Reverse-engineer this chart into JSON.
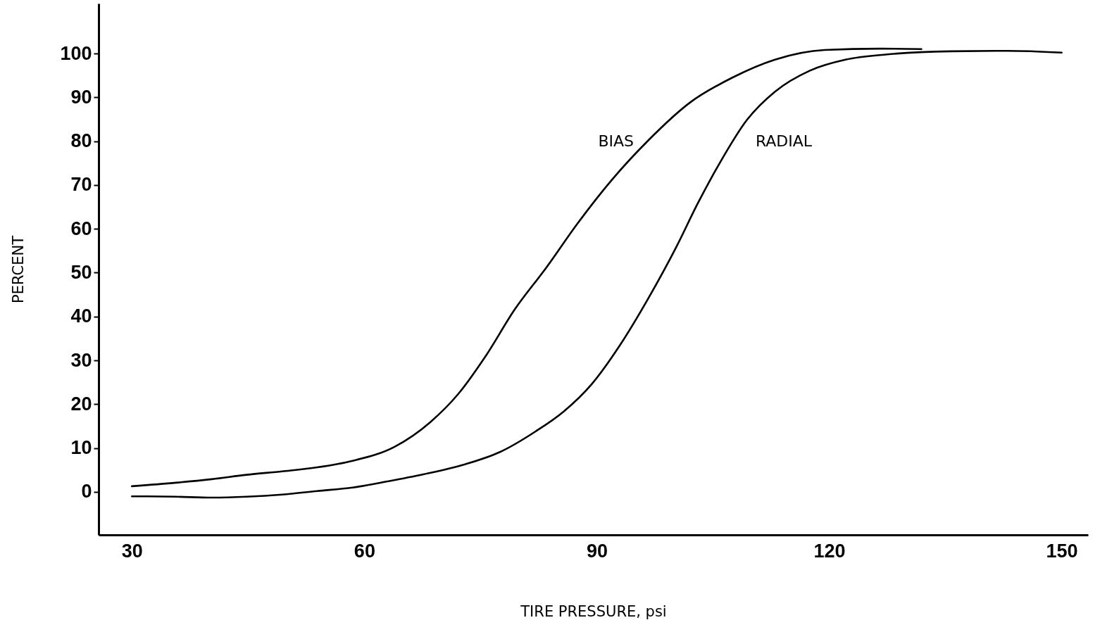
{
  "chart_data": {
    "type": "line",
    "xlabel": "TIRE PRESSURE, psi",
    "ylabel": "PERCENT",
    "xlim": [
      25.7,
      153.4
    ],
    "ylim": [
      -9.8,
      111.4
    ],
    "xticks": [
      30,
      60,
      90,
      120,
      150
    ],
    "yticks": [
      0,
      10,
      20,
      30,
      40,
      50,
      60,
      70,
      80,
      90,
      100
    ],
    "grid": false,
    "marker": "none",
    "line_style": "solid",
    "series": [
      {
        "name": "BIAS",
        "color": "#000000",
        "x": [
          30,
          35.7,
          40.3,
          44.8,
          49.4,
          53.9,
          58.5,
          63.9,
          68.5,
          72.1,
          75.7,
          79.4,
          83.5,
          87.5,
          92.0,
          96.6,
          102.1,
          107.5,
          113.0,
          119.4,
          126.6,
          131.9
        ],
        "values": [
          1.3,
          2.1,
          2.9,
          3.9,
          4.7,
          5.6,
          7.1,
          10.3,
          15.9,
          22.3,
          31.1,
          41.6,
          51.2,
          61.2,
          71.3,
          80.1,
          88.9,
          94.5,
          98.6,
          100.8,
          101.1,
          101.0
        ]
      },
      {
        "name": "RADIAL",
        "color": "#000000",
        "x": [
          30,
          35.7,
          40.3,
          44.8,
          49.4,
          53.9,
          58.5,
          63.0,
          67.6,
          73.0,
          77.5,
          82.1,
          85.7,
          89.4,
          93.0,
          96.6,
          100.3,
          103.0,
          105.7,
          109.4,
          113.0,
          117.5,
          122.1,
          127.5,
          135.7,
          143.0,
          150
        ],
        "values": [
          -1.0,
          -1.1,
          -1.3,
          -1.1,
          -0.6,
          0.2,
          1.0,
          2.4,
          4.0,
          6.3,
          9.1,
          13.8,
          18.3,
          24.7,
          33.5,
          44.0,
          56.0,
          65.7,
          74.5,
          84.9,
          91.3,
          96.1,
          98.6,
          99.8,
          100.5,
          100.6,
          100.2
        ]
      }
    ]
  }
}
